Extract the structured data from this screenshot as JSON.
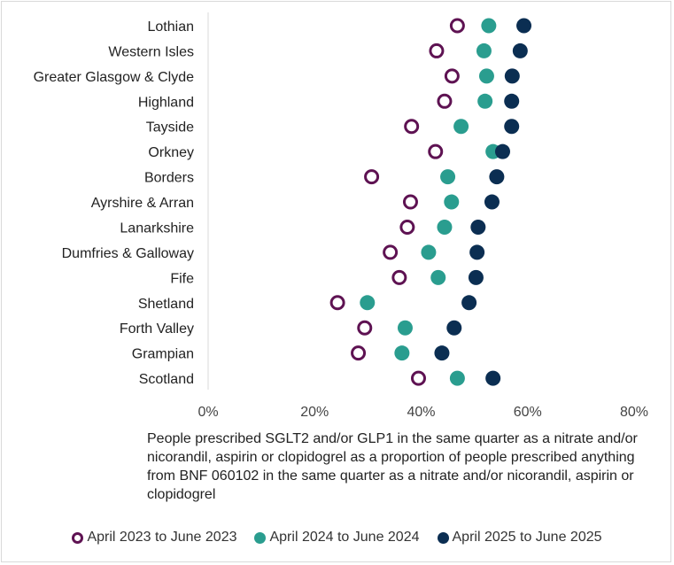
{
  "chart_data": {
    "type": "scatter",
    "subtype": "dot-plot",
    "categories": [
      "Lothian",
      "Western Isles",
      "Greater Glasgow & Clyde",
      "Highland",
      "Tayside",
      "Orkney",
      "Borders",
      "Ayrshire & Arran",
      "Lanarkshire",
      "Dumfries & Galloway",
      "Fife",
      "Shetland",
      "Forth Valley",
      "Grampian",
      "Scotland"
    ],
    "series": [
      {
        "name": "April 2023 to June 2023",
        "color": "#5e1252",
        "marker": "open-circle",
        "values": [
          46.8,
          42.9,
          45.8,
          44.4,
          38.2,
          42.7,
          30.7,
          38.0,
          37.4,
          34.2,
          35.9,
          24.3,
          29.4,
          28.2,
          39.5
        ]
      },
      {
        "name": "April 2024 to June 2024",
        "color": "#2a9d8f",
        "marker": "filled-circle",
        "values": [
          52.7,
          51.8,
          52.3,
          52.0,
          47.5,
          53.5,
          45.0,
          45.7,
          44.4,
          41.4,
          43.2,
          29.9,
          37.0,
          36.4,
          46.8
        ]
      },
      {
        "name": "April 2025 to June 2025",
        "color": "#0b2e52",
        "marker": "filled-circle",
        "values": [
          59.3,
          58.6,
          57.1,
          57.0,
          57.0,
          55.3,
          54.2,
          53.3,
          50.7,
          50.5,
          50.3,
          49.0,
          46.2,
          43.9,
          53.5
        ]
      }
    ],
    "xticks": [
      "0%",
      "20%",
      "40%",
      "60%",
      "80%"
    ],
    "xlim": [
      0,
      80
    ],
    "xlabel": "People prescribed SGLT2 and/or GLP1 in the same quarter as a nitrate and/or nicorandil, aspirin or clopidogrel as a proportion of people prescribed anything from BNF 060102 in the same quarter as a nitrate and/or nicorandil, aspirin or clopidogrel",
    "grid": false,
    "legend_position": "bottom"
  }
}
